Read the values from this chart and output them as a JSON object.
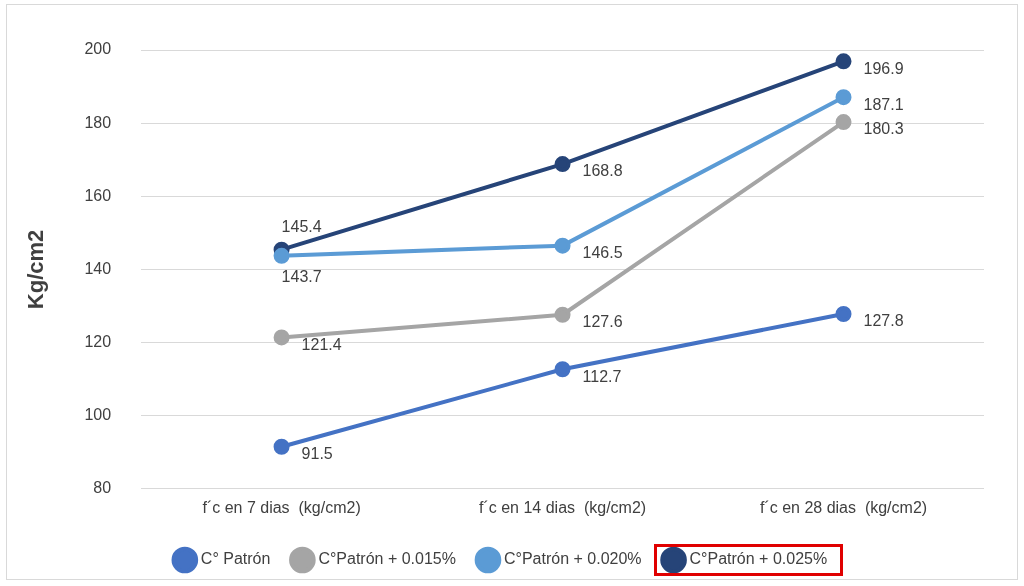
{
  "chart_data": {
    "type": "line",
    "ylabel": "Kg/cm2",
    "categories": [
      "f´c en 7 dias  (kg/cm2)",
      "f´c en 14 dias  (kg/cm2)",
      "f´c en 28 dias  (kg/cm2)"
    ],
    "series": [
      {
        "name": "C° Patrón",
        "color": "#4472c4",
        "values": [
          91.5,
          112.7,
          127.8
        ]
      },
      {
        "name": "C°Patrón + 0.015%",
        "color": "#a5a5a5",
        "values": [
          121.4,
          127.6,
          180.3
        ]
      },
      {
        "name": "C°Patrón + 0.020%",
        "color": "#5b9bd5",
        "values": [
          143.7,
          146.5,
          187.1
        ]
      },
      {
        "name": "C°Patrón + 0.025%",
        "color": "#264478",
        "values": [
          145.4,
          168.8,
          196.9
        ]
      }
    ],
    "ylim": [
      80,
      200
    ],
    "yticks": [
      80,
      100,
      120,
      140,
      160,
      180,
      200
    ],
    "grid": "y",
    "legend": "bottom",
    "marker": "circle",
    "line_style": "solid",
    "data_labels": true
  }
}
